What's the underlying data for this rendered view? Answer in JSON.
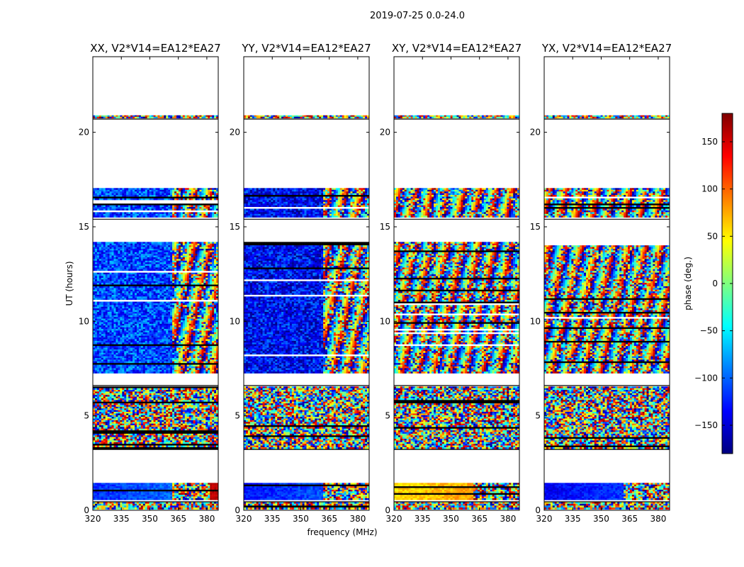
{
  "figure_title": "2019-07-25 0.0-24.0",
  "chart_data": {
    "type": "heatmap",
    "suptitle": "2019-07-25 0.0-24.0",
    "xlabel": "frequency (MHz)",
    "ylabel": "UT (hours)",
    "xlim": [
      320,
      386
    ],
    "ylim": [
      0,
      24
    ],
    "xticks": [
      320,
      335,
      350,
      365,
      380
    ],
    "yticks": [
      0,
      5,
      10,
      15,
      20
    ],
    "colorbar": {
      "label": "phase (deg.)",
      "range": [
        -180,
        180
      ],
      "ticks": [
        -150,
        -100,
        -50,
        0,
        50,
        100,
        150
      ],
      "colormap": "jet",
      "colors": [
        "#00007f",
        "#0000ff",
        "#007fff",
        "#00ffff",
        "#7fff7f",
        "#ffff00",
        "#ff7f00",
        "#ff0000",
        "#7f0000"
      ]
    },
    "panels": [
      {
        "title": "XX, V2*V14=EA12*EA27",
        "baseline_phase": -120,
        "mid_phase": -110
      },
      {
        "title": "YY, V2*V14=EA12*EA27",
        "baseline_phase": -130,
        "mid_phase": -135
      },
      {
        "title": "XY, V2*V14=EA12*EA27",
        "baseline_phase": 55,
        "mid_phase": null
      },
      {
        "title": "YX, V2*V14=EA12*EA27",
        "baseline_phase": -140,
        "mid_phase": null
      }
    ],
    "data_blocks_ut": [
      {
        "start": 0.05,
        "end": 0.45,
        "kind": "noise"
      },
      {
        "start": 0.55,
        "end": 1.45,
        "kind": "smooth"
      },
      {
        "start": 3.25,
        "end": 6.55,
        "kind": "noise"
      },
      {
        "start": 7.25,
        "end": 14.2,
        "kind": "mixed"
      },
      {
        "start": 15.5,
        "end": 17.05,
        "kind": "mixed"
      },
      {
        "start": 20.75,
        "end": 20.9,
        "kind": "thin"
      }
    ],
    "data_gaps_ut": [
      [
        0.5,
        0.55
      ],
      [
        1.45,
        3.25
      ],
      [
        6.55,
        7.25
      ],
      [
        14.2,
        15.5
      ],
      [
        17.05,
        20.75
      ],
      [
        20.9,
        24.0
      ]
    ],
    "horizontal_breaks_ut": [
      0.45,
      3.22,
      6.6,
      15.4,
      20.7
    ],
    "transition_freq_mhz": 362
  }
}
